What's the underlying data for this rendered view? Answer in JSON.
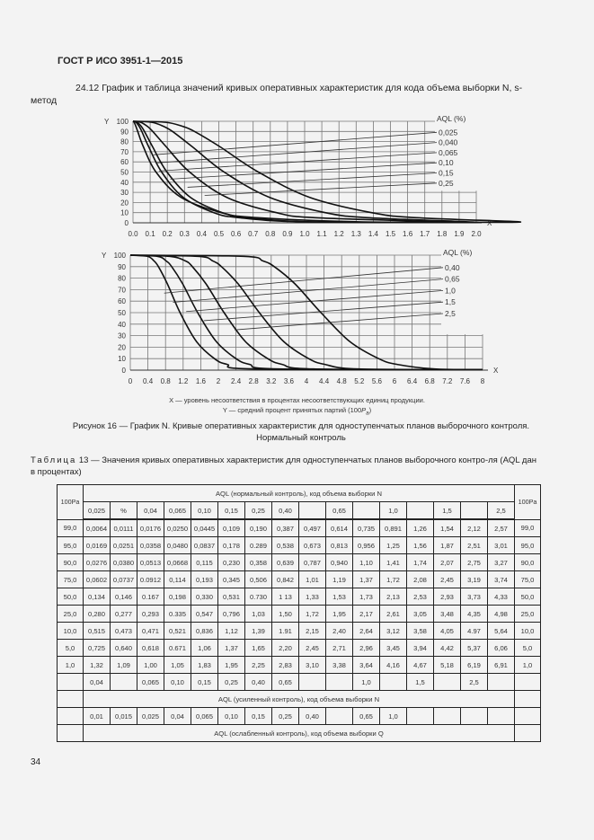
{
  "header": {
    "doc_id": "ГОСТ Р ИСО 3951-1—2015"
  },
  "section": {
    "text": "24.12 График и таблица значений кривых оперативных характеристик для кода объема выборки N, s-метод"
  },
  "chart_data": [
    {
      "type": "line",
      "xlabel": "X",
      "ylabel": "Y",
      "xlim": [
        0,
        2.0
      ],
      "ylim": [
        0,
        100
      ],
      "xticks": [
        "0.0",
        "0.1",
        "0.2",
        "0.3",
        "0.4",
        "0.5",
        "0.6",
        "0.7",
        "0.8",
        "0.9",
        "1.0",
        "1.1",
        "1.2",
        "1.3",
        "1.4",
        "1.5",
        "1.6",
        "1.7",
        "1.8",
        "1.9",
        "2.0"
      ],
      "yticks": [
        "0",
        "10",
        "20",
        "30",
        "40",
        "50",
        "60",
        "70",
        "80",
        "90",
        "100"
      ],
      "grid": true,
      "legend_title": "AQL (%)",
      "legend_placement": "right",
      "y_points": [
        100,
        99,
        95,
        90,
        75,
        50,
        25,
        10,
        5,
        1
      ],
      "series": [
        {
          "name": "0,025",
          "x": [
            0,
            0.0064,
            0.0169,
            0.0276,
            0.0602,
            0.134,
            0.28,
            0.515,
            0.725,
            1.32
          ]
        },
        {
          "name": "0,040",
          "x": [
            0,
            0.0176,
            0.0358,
            0.0513,
            0.0912,
            0.167,
            0.293,
            0.471,
            0.618,
            1.0
          ]
        },
        {
          "name": "0,065",
          "x": [
            0,
            0.025,
            0.048,
            0.0668,
            0.114,
            0.198,
            0.335,
            0.521,
            0.671,
            1.05
          ]
        },
        {
          "name": "0,10",
          "x": [
            0,
            0.0445,
            0.0837,
            0.115,
            0.193,
            0.33,
            0.547,
            0.836,
            1.06,
            1.83
          ]
        },
        {
          "name": "0,15",
          "x": [
            0,
            0.109,
            0.178,
            0.23,
            0.345,
            0.531,
            0.796,
            1.12,
            1.37,
            1.95
          ]
        },
        {
          "name": "0,25",
          "x": [
            0,
            0.19,
            0.289,
            0.358,
            0.506,
            0.73,
            1.03,
            1.39,
            1.65,
            2.25
          ]
        }
      ]
    },
    {
      "type": "line",
      "xlabel": "X",
      "ylabel": "Y",
      "xlim": [
        0,
        8
      ],
      "ylim": [
        0,
        100
      ],
      "xticks": [
        "0",
        "0.4",
        "0.8",
        "1.2",
        "1.6",
        "2",
        "2.4",
        "2.8",
        "3.2",
        "3.6",
        "4",
        "4.4",
        "4.8",
        "5.2",
        "5.6",
        "6",
        "6.4",
        "6.8",
        "7.2",
        "7.6",
        "8"
      ],
      "yticks": [
        "0",
        "10",
        "20",
        "30",
        "40",
        "50",
        "60",
        "70",
        "80",
        "90",
        "100"
      ],
      "grid": true,
      "legend_title": "AQL (%)",
      "legend_placement": "right",
      "y_points": [
        100,
        99,
        95,
        90,
        75,
        50,
        25,
        10,
        5,
        1
      ],
      "series": [
        {
          "name": "0,40",
          "x": [
            0,
            0.387,
            0.538,
            0.639,
            0.842,
            1.13,
            1.5,
            1.91,
            2.2,
            2.83
          ]
        },
        {
          "name": "0,65",
          "x": [
            0,
            0.614,
            0.813,
            0.94,
            1.19,
            1.53,
            1.95,
            2.4,
            2.71,
            3.38
          ]
        },
        {
          "name": "1,0",
          "x": [
            0,
            0.891,
            1.25,
            1.41,
            1.72,
            2.13,
            2.61,
            3.12,
            3.45,
            4.16
          ]
        },
        {
          "name": "1,5",
          "x": [
            0,
            1.54,
            1.87,
            2.07,
            2.45,
            2.93,
            3.48,
            4.05,
            4.42,
            5.18
          ]
        },
        {
          "name": "2,5",
          "x": [
            0,
            2.57,
            3.01,
            3.27,
            3.74,
            4.33,
            4.98,
            5.64,
            6.06,
            6.91
          ]
        }
      ]
    }
  ],
  "legend_notes": {
    "x": "X — уровень несоответствия в процентах несоответствующих единиц продукции.",
    "y_prefix": "Y — средний процент принятых партий (100",
    "y_p": "P",
    "y_sub": "a",
    "y_suffix": ")"
  },
  "figure_caption": {
    "line1": "Рисунок 16 — График N. Кривые оперативных характеристик для одноступенчатых планов выборочного контроля.",
    "line2": "Нормальный контроль"
  },
  "table_caption": {
    "label": "Таблица",
    "text": " 13 — Значения кривых оперативных характеристик для одноступенчатых планов выборочного контро-ля (AQL дан в процентах)"
  },
  "table": {
    "pa_header": "100Pa",
    "normal_header": "AQL (нормальный контроль), код объема выборки N",
    "aql_columns": [
      "0,025",
      "%",
      "0,04",
      "0,065",
      "0,10",
      "0,15",
      "0,25",
      "0,40",
      "",
      "0,65",
      "",
      "1,0",
      "",
      "1,5",
      "",
      "2,5"
    ],
    "rows": [
      {
        "pa": "99,0",
        "values": [
          "0,0064",
          "0,0111",
          "0,0176",
          "0,0250",
          "0,0445",
          "0,109",
          "0,190",
          "0,387",
          "0,497",
          "0,614",
          "0,735",
          "0,891",
          "1,26",
          "1,54",
          "2,12",
          "2,57"
        ]
      },
      {
        "pa": "95,0",
        "values": [
          "0,0169",
          "0,0251",
          "0,0358",
          "0,0480",
          "0,0837",
          "0,178",
          "0.289",
          "0,538",
          "0,673",
          "0,813",
          "0,956",
          "1,25",
          "1,56",
          "1,87",
          "2,51",
          "3,01"
        ]
      },
      {
        "pa": "90,0",
        "values": [
          "0,0276",
          "0,0380",
          "0,0513",
          "0,0668",
          "0,115",
          "0,230",
          "0,358",
          "0,639",
          "0,787",
          "0,940",
          "1,10",
          "1,41",
          "1,74",
          "2,07",
          "2,75",
          "3,27"
        ]
      },
      {
        "pa": "75,0",
        "values": [
          "0,0602",
          "0,0737",
          "0.0912",
          "0,114",
          "0,193",
          "0,345",
          "0,506",
          "0,842",
          "1,01",
          "1,19",
          "1,37",
          "1,72",
          "2,08",
          "2,45",
          "3,19",
          "3,74"
        ]
      },
      {
        "pa": "50,0",
        "values": [
          "0,134",
          "0,146",
          "0.167",
          "0,198",
          "0,330",
          "0,531",
          "0.730",
          "1 13",
          "1,33",
          "1,53",
          "1,73",
          "2,13",
          "2,53",
          "2,93",
          "3,73",
          "4,33"
        ]
      },
      {
        "pa": "25,0",
        "values": [
          "0,280",
          "0,277",
          "0,293",
          "0.335",
          "0,547",
          "0,796",
          "1,03",
          "1,50",
          "1,72",
          "1,95",
          "2,17",
          "2,61",
          "3,05",
          "3,48",
          "4,35",
          "4,98"
        ]
      },
      {
        "pa": "10,0",
        "values": [
          "0,515",
          "0,473",
          "0,471",
          "0,521",
          "0,836",
          "1,12",
          "1,39",
          "1.91",
          "2,15",
          "2,40",
          "2,64",
          "3,12",
          "3,58",
          "4,05",
          "4.97",
          "5,64"
        ]
      },
      {
        "pa": "5,0",
        "values": [
          "0,725",
          "0,640",
          "0,618",
          "0.671",
          "1,06",
          "1,37",
          "1,65",
          "2,20",
          "2,45",
          "2,71",
          "2,96",
          "3,45",
          "3,94",
          "4,42",
          "5,37",
          "6,06"
        ]
      },
      {
        "pa": "1,0",
        "values": [
          "1,32",
          "1,09",
          "1,00",
          "1,05",
          "1,83",
          "1,95",
          "2,25",
          "2,83",
          "3,10",
          "3,38",
          "3,64",
          "4,16",
          "4,67",
          "5,18",
          "6,19",
          "6,91"
        ]
      }
    ],
    "tightened_aql": [
      "0,04",
      "",
      "0,065",
      "0,10",
      "0,15",
      "0,25",
      "0,40",
      "0,65",
      "",
      "",
      "1,0",
      "",
      "1,5",
      "",
      "2,5",
      ""
    ],
    "tightened_header": "AQL (усиленный контроль), код объема выборки N",
    "reduced_aql": [
      "0,01",
      "0,015",
      "0,025",
      "0,04",
      "0,065",
      "0,10",
      "0,15",
      "0,25",
      "0,40",
      "",
      "0,65",
      "1,0",
      "",
      "",
      "",
      ""
    ],
    "reduced_header": "AQL (ослабленный контроль), код объема выборки Q"
  },
  "page_number": "34"
}
